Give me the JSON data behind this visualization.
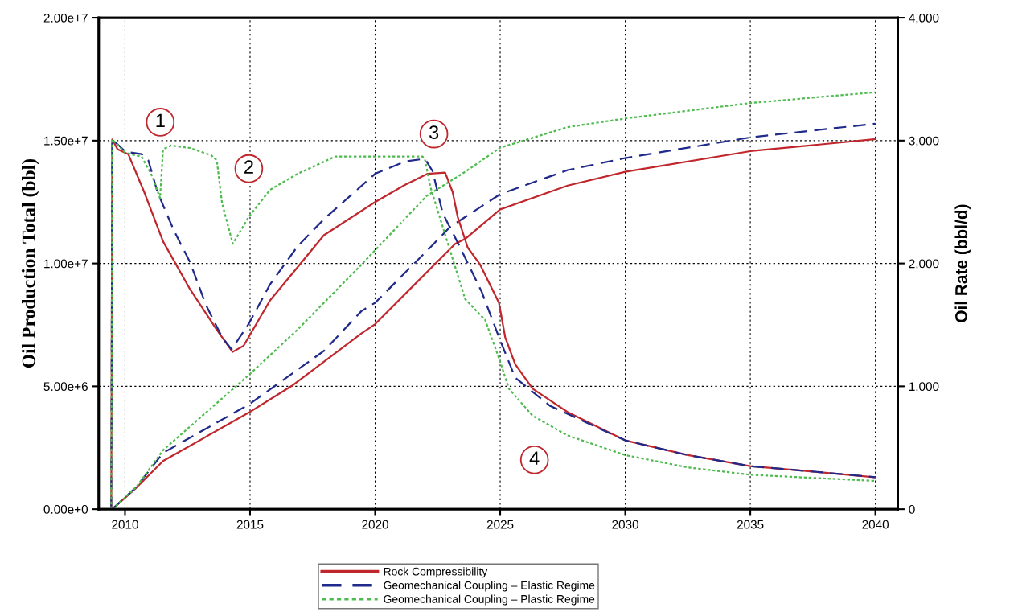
{
  "chart_data": {
    "type": "line",
    "ylabel": "Oil Production Total (bbl)",
    "y2label": "Oil Rate (bbl/d)",
    "xlim": [
      2008.95,
      2040.9
    ],
    "xticks": [
      2010,
      2015,
      2020,
      2025,
      2030,
      2035,
      2040
    ],
    "ylim": [
      0,
      20000000
    ],
    "yticks": [
      {
        "value": 0,
        "label": "0.00e+0"
      },
      {
        "value": 5000000,
        "label": "5.00e+6"
      },
      {
        "value": 10000000,
        "label": "1.00e+7"
      },
      {
        "value": 15000000,
        "label": "1.50e+7"
      },
      {
        "value": 20000000,
        "label": "2.00e+7"
      }
    ],
    "y2lim": [
      0,
      4000
    ],
    "y2ticks": [
      0,
      {
        "value": 1000,
        "label": "1,000"
      },
      {
        "value": 2000,
        "label": "2,000"
      },
      {
        "value": 3000,
        "label": "3,000"
      },
      {
        "value": 4000,
        "label": "4,000"
      }
    ],
    "grid": true,
    "legend": "bottom",
    "marker": "none",
    "series": [
      {
        "name": "Rock Compressibility",
        "color": "#c0272d",
        "line_style": "solid",
        "axis": "y2",
        "x": [
          2009.45,
          2009.49,
          2009.7,
          2010.13,
          2010.77,
          2011.52,
          2012.6,
          2013.67,
          2014.3,
          2014.74,
          2015.8,
          2016.9,
          2017.95,
          2020.0,
          2021.2,
          2022.1,
          2022.8,
          2023.1,
          2023.3,
          2023.7,
          2024.2,
          2024.95,
          2025.2,
          2025.6,
          2026.3,
          2027.7,
          2030.0,
          2032.5,
          2035.0,
          2037.3,
          2040.0
        ],
        "values": [
          0,
          3010,
          2930,
          2890,
          2580,
          2180,
          1790,
          1460,
          1280,
          1330,
          1700,
          1970,
          2230,
          2500,
          2640,
          2730,
          2740,
          2580,
          2380,
          2130,
          1990,
          1680,
          1400,
          1180,
          980,
          790,
          560,
          440,
          350,
          310,
          260
        ]
      },
      {
        "name": "Geomechanical Coupling – Elastic Regime",
        "color": "#1f2a8a",
        "line_style": "dashed",
        "axis": "y2",
        "x": [
          2009.45,
          2009.49,
          2010.02,
          2010.66,
          2010.93,
          2011.3,
          2011.95,
          2012.6,
          2013.24,
          2013.88,
          2014.26,
          2014.95,
          2015.8,
          2016.9,
          2017.95,
          2020.0,
          2021.2,
          2021.9,
          2022.06,
          2022.3,
          2022.7,
          2023.4,
          2024.26,
          2024.95,
          2025.6,
          2027.0,
          2030.0,
          2032.5,
          2035.0,
          2037.3,
          2040.0
        ],
        "values": [
          0,
          3010,
          2910,
          2890,
          2840,
          2580,
          2270,
          2010,
          1660,
          1400,
          1300,
          1510,
          1830,
          2140,
          2360,
          2730,
          2830,
          2850,
          2830,
          2750,
          2410,
          2130,
          1770,
          1400,
          1070,
          840,
          560,
          440,
          350,
          310,
          260
        ]
      },
      {
        "name": "Geomechanical Coupling – Plastic Regime",
        "color": "#4dbb4d",
        "line_style": "dotted",
        "axis": "y2",
        "x": [
          2009.45,
          2009.49,
          2010.02,
          2010.66,
          2011.09,
          2011.4,
          2011.52,
          2011.84,
          2012.6,
          2013.45,
          2013.67,
          2013.88,
          2014.31,
          2014.95,
          2015.8,
          2016.9,
          2018.4,
          2021.9,
          2022.0,
          2022.2,
          2022.7,
          2023.6,
          2024.4,
          2024.95,
          2025.35,
          2026.3,
          2027.7,
          2030.0,
          2032.5,
          2035.0,
          2040.0
        ],
        "values": [
          0,
          3010,
          2900,
          2870,
          2710,
          2530,
          2930,
          2960,
          2940,
          2880,
          2840,
          2490,
          2160,
          2380,
          2600,
          2730,
          2870,
          2870,
          2840,
          2630,
          2300,
          1710,
          1540,
          1230,
          980,
          760,
          600,
          440,
          340,
          280,
          230
        ]
      },
      {
        "color": "#c0272d",
        "line_style": "solid",
        "x": [
          2009.49,
          2010.45,
          2011.52,
          2014.95,
          2016.67,
          2019.45,
          2020.0,
          2023.2,
          2023.6,
          2025.0,
          2027.7,
          2030.0,
          2035.0,
          2040.0
        ],
        "values": [
          0,
          870000,
          1960000,
          3930000,
          5020000,
          7150000,
          7530000,
          10800000,
          11000000,
          12200000,
          13170000,
          13730000,
          14570000,
          15060000
        ]
      },
      {
        "color": "#1f2a8a",
        "line_style": "dashed",
        "x": [
          2009.49,
          2010.45,
          2011.52,
          2014.95,
          2016.0,
          2017.95,
          2019.45,
          2020.0,
          2022.25,
          2023.0,
          2025.0,
          2027.7,
          2030.0,
          2035.0,
          2040.0
        ],
        "values": [
          0,
          900000,
          2290000,
          4260000,
          5020000,
          6440000,
          8060000,
          8400000,
          10700000,
          11490000,
          12820000,
          13800000,
          14290000,
          15130000,
          15690000
        ]
      },
      {
        "color": "#4dbb4d",
        "line_style": "dotted",
        "x": [
          2009.49,
          2010.45,
          2011.52,
          2014.95,
          2016.9,
          2019.45,
          2022.06,
          2023.6,
          2025.0,
          2027.7,
          2030.0,
          2035.0,
          2040.0
        ],
        "values": [
          0,
          900000,
          2400000,
          5460000,
          7310000,
          9950000,
          12750000,
          13730000,
          14710000,
          15550000,
          15900000,
          16530000,
          16970000
        ]
      }
    ],
    "annotations": [
      {
        "text": "1",
        "x": 2011.41,
        "y": 15750000
      },
      {
        "text": "2",
        "x": 2014.95,
        "y": 13860000
      },
      {
        "text": "3",
        "x": 2022.35,
        "y": 15270000
      },
      {
        "text": "4",
        "x": 2026.37,
        "y": 2010000
      }
    ]
  }
}
